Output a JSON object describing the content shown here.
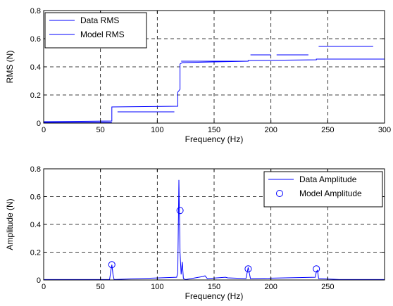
{
  "chart_data": [
    {
      "type": "line",
      "xlabel": "Frequency (Hz)",
      "ylabel": "RMS (N)",
      "xlim": [
        0,
        300
      ],
      "ylim": [
        0,
        0.8
      ],
      "xticks": [
        "0",
        "50",
        "100",
        "150",
        "200",
        "250",
        "300"
      ],
      "yticks": [
        "0",
        "0.2",
        "0.4",
        "0.6",
        "0.8"
      ],
      "grid": true,
      "legend_position": "top-left",
      "series": [
        {
          "name": "Data RMS",
          "style": "line",
          "color": "#0000ff",
          "x": [
            0,
            60,
            60,
            118,
            118,
            120,
            120,
            122,
            122,
            150,
            180,
            180,
            240,
            240,
            300
          ],
          "y": [
            0.01,
            0.015,
            0.115,
            0.12,
            0.22,
            0.24,
            0.42,
            0.43,
            0.43,
            0.435,
            0.44,
            0.445,
            0.45,
            0.455,
            0.455
          ]
        },
        {
          "name": "Model RMS",
          "style": "step-segments",
          "color": "#0000ff",
          "segments": [
            {
              "x0": 0,
              "x1": 60,
              "y": 0.005
            },
            {
              "x0": 65,
              "x1": 115,
              "y": 0.08
            },
            {
              "x0": 121,
              "x1": 180,
              "y": 0.44
            },
            {
              "x0": 182,
              "x1": 200,
              "y": 0.485
            },
            {
              "x0": 205,
              "x1": 233,
              "y": 0.485
            },
            {
              "x0": 242,
              "x1": 290,
              "y": 0.545
            }
          ]
        }
      ]
    },
    {
      "type": "line",
      "xlabel": "Frequency (Hz)",
      "ylabel": "Amplitude (N)",
      "xlim": [
        0,
        300
      ],
      "ylim": [
        0,
        0.8
      ],
      "xticks": [
        "0",
        "50",
        "100",
        "150",
        "200",
        "250"
      ],
      "yticks": [
        "0",
        "0.2",
        "0.4",
        "0.6",
        "0.8"
      ],
      "grid": true,
      "legend_position": "top-right",
      "series": [
        {
          "name": "Data Amplitude",
          "style": "spectrum",
          "color": "#0000ff",
          "x": [
            0,
            58,
            59,
            60,
            61,
            62,
            117,
            118,
            119,
            120,
            121,
            122,
            123,
            125,
            140,
            142,
            144,
            160,
            162,
            178,
            179,
            180,
            181,
            182,
            239,
            240,
            241,
            242,
            260,
            300
          ],
          "y": [
            0.003,
            0.003,
            0.06,
            0.11,
            0.04,
            0.003,
            0.02,
            0.05,
            0.72,
            0.2,
            0.04,
            0.13,
            0.01,
            0.003,
            0.025,
            0.03,
            0.01,
            0.02,
            0.015,
            0.01,
            0.05,
            0.09,
            0.05,
            0.01,
            0.02,
            0.06,
            0.07,
            0.01,
            0.003,
            0.003
          ]
        },
        {
          "name": "Model Amplitude",
          "style": "markers",
          "color": "#0000ff",
          "x": [
            60,
            120,
            180,
            240
          ],
          "y": [
            0.11,
            0.5,
            0.08,
            0.08
          ]
        }
      ]
    }
  ]
}
